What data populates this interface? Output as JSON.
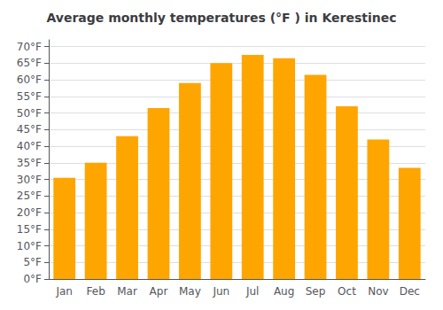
{
  "chart_data": {
    "type": "bar",
    "title": "Average monthly temperatures (°F ) in Kerestinec",
    "categories": [
      "Jan",
      "Feb",
      "Mar",
      "Apr",
      "May",
      "Jun",
      "Jul",
      "Aug",
      "Sep",
      "Oct",
      "Nov",
      "Dec"
    ],
    "values": [
      30.5,
      35.0,
      43.0,
      51.5,
      59.0,
      65.0,
      67.5,
      66.5,
      61.5,
      52.0,
      42.0,
      33.5
    ],
    "color": "#FFA500",
    "ylim": [
      0,
      72
    ],
    "yticks": [
      {
        "value": 0,
        "label": "0°F"
      },
      {
        "value": 5,
        "label": "5°F"
      },
      {
        "value": 10,
        "label": "10°F"
      },
      {
        "value": 15,
        "label": "15°F"
      },
      {
        "value": 20,
        "label": "20°F"
      },
      {
        "value": 25,
        "label": "25°F"
      },
      {
        "value": 30,
        "label": "30°F"
      },
      {
        "value": 35,
        "label": "35°F"
      },
      {
        "value": 40,
        "label": "40°F"
      },
      {
        "value": 45,
        "label": "45°F"
      },
      {
        "value": 50,
        "label": "50°F"
      },
      {
        "value": 55,
        "label": "55°F"
      },
      {
        "value": 60,
        "label": "60°F"
      },
      {
        "value": 65,
        "label": "65°F"
      },
      {
        "value": 70,
        "label": "70°F"
      }
    ],
    "grid": true
  }
}
